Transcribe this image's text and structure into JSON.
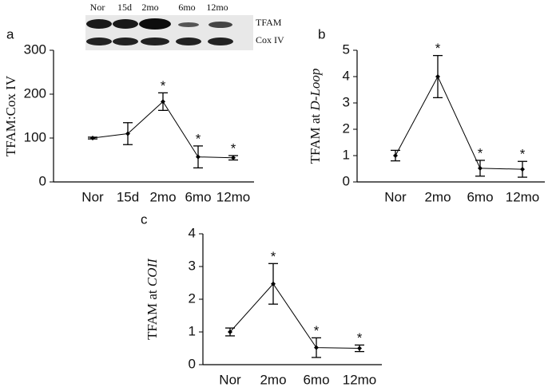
{
  "blot": {
    "lanes": [
      "Nor",
      "15d",
      "2mo",
      "6mo",
      "12mo"
    ],
    "bands": [
      "TFAM",
      "Cox IV"
    ]
  },
  "chart_data": [
    {
      "type": "line",
      "panel": "a",
      "ylabel": {
        "text": "TFAM:Cox IV"
      },
      "categories": [
        "Nor",
        "15d",
        "2mo",
        "6mo",
        "12mo"
      ],
      "values": [
        100,
        110,
        183,
        57,
        55
      ],
      "errors": [
        2,
        25,
        20,
        25,
        5
      ],
      "annotations": [
        null,
        null,
        "*",
        "*",
        "*"
      ],
      "ylim": [
        0,
        300
      ],
      "yticks": [
        0,
        100,
        200,
        300
      ],
      "color": "#000000"
    },
    {
      "type": "line",
      "panel": "b",
      "ylabel": {
        "text": "TFAM at",
        "italic": "D-Loop"
      },
      "categories": [
        "Nor",
        "2mo",
        "6mo",
        "12mo"
      ],
      "values": [
        1.0,
        4.0,
        0.52,
        0.48
      ],
      "errors": [
        0.2,
        0.8,
        0.3,
        0.3
      ],
      "annotations": [
        null,
        "*",
        "*",
        "*"
      ],
      "ylim": [
        0,
        5
      ],
      "yticks": [
        0,
        1,
        2,
        3,
        4,
        5
      ],
      "color": "#000000"
    },
    {
      "type": "line",
      "panel": "c",
      "ylabel": {
        "text": "TFAM at",
        "italic": "COII"
      },
      "categories": [
        "Nor",
        "2mo",
        "6mo",
        "12mo"
      ],
      "values": [
        1.0,
        2.47,
        0.52,
        0.5
      ],
      "errors": [
        0.12,
        0.62,
        0.3,
        0.1
      ],
      "annotations": [
        null,
        "*",
        "*",
        "*"
      ],
      "ylim": [
        0,
        4
      ],
      "yticks": [
        0,
        1,
        2,
        3,
        4
      ],
      "color": "#000000"
    }
  ]
}
